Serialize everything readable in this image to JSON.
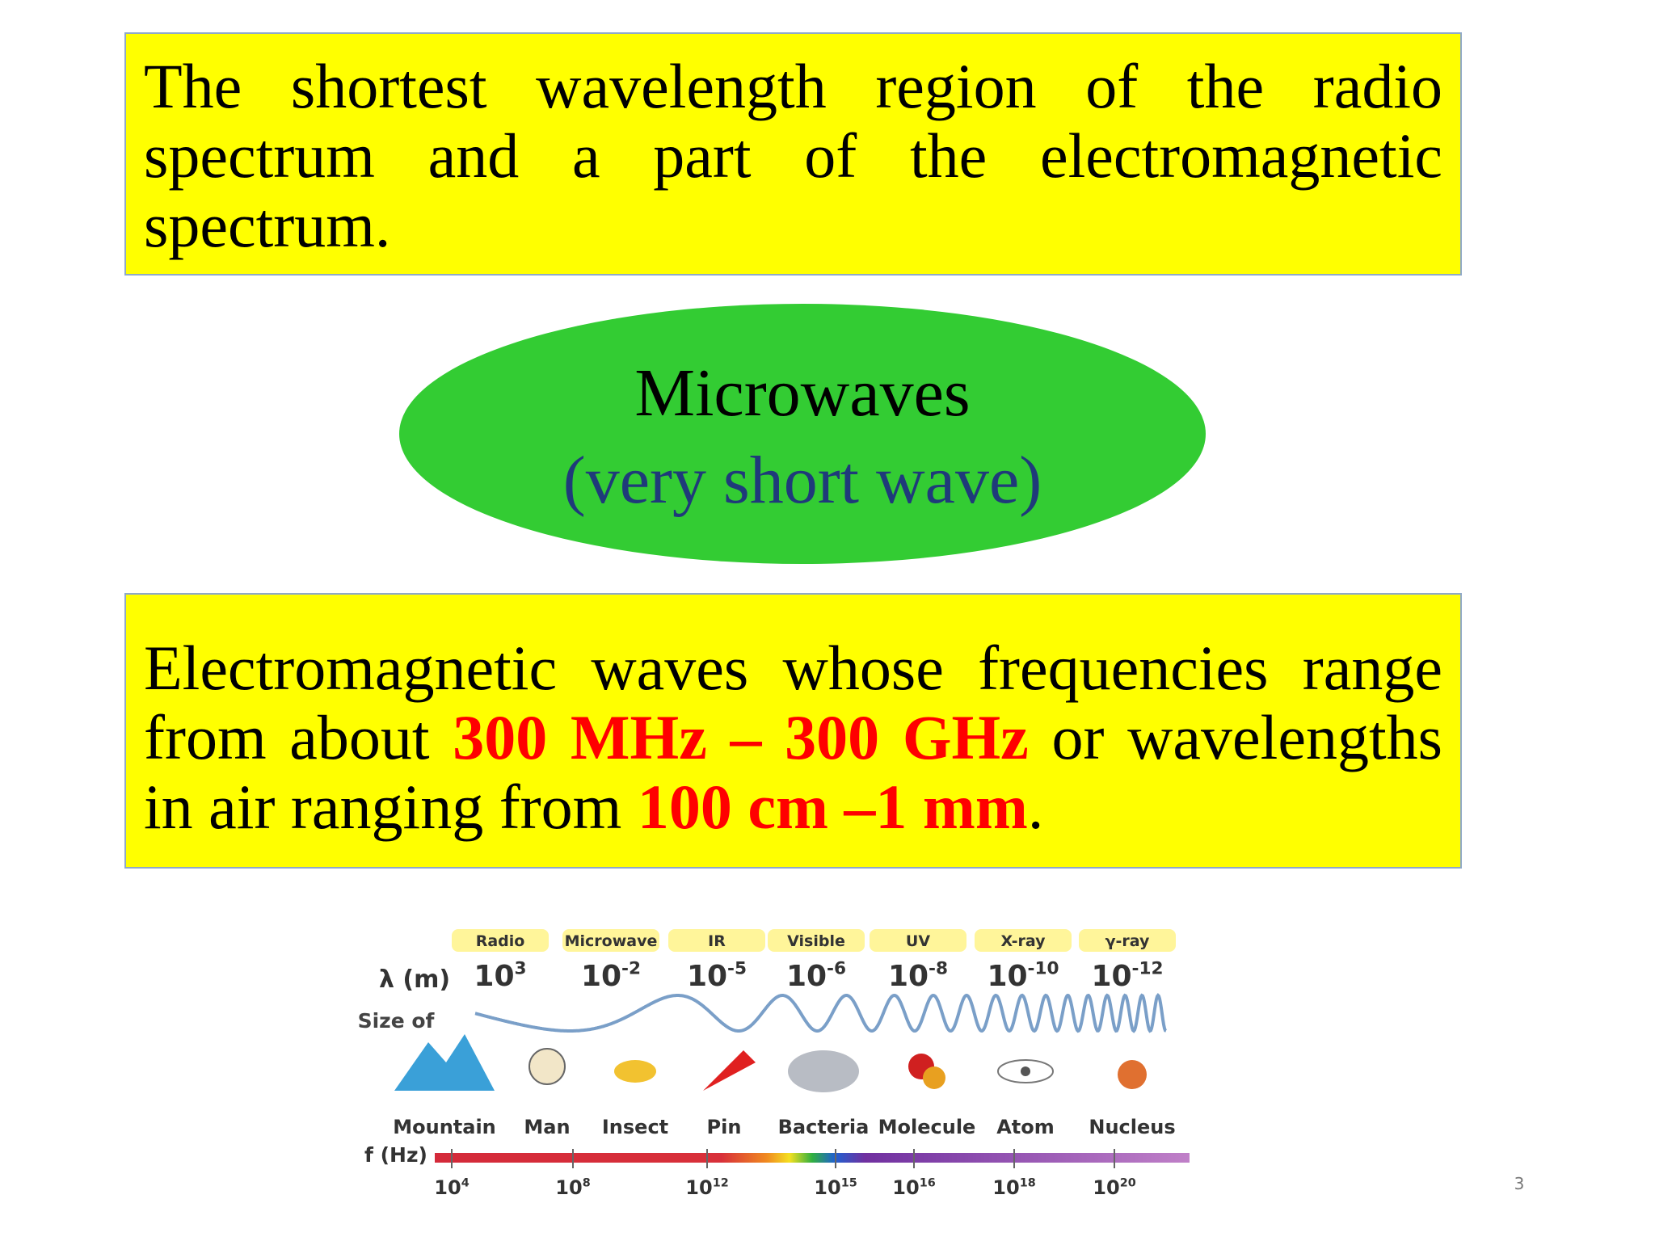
{
  "box1": {
    "text": "The shortest wavelength region of the radio spectrum and a part of the electromagnetic spectrum."
  },
  "ellipse": {
    "title": "Microwaves",
    "subtitle": "(very short wave)"
  },
  "box2": {
    "segments": [
      "Electromagnetic waves whose frequencies range from about ",
      "300 MHz – 300 GHz",
      " or wavelengths in air ranging from ",
      "100 cm –1 mm",
      "."
    ]
  },
  "spectrum": {
    "bands": [
      "Radio",
      "Microwave",
      "IR",
      "Visible",
      "UV",
      "X-ray",
      "γ-ray"
    ],
    "wavelength_label": "λ (m)",
    "wavelengths": [
      {
        "base": "10",
        "exp": "3"
      },
      {
        "base": "10",
        "exp": "-2"
      },
      {
        "base": "10",
        "exp": "-5"
      },
      {
        "base": "10",
        "exp": "-6"
      },
      {
        "base": "10",
        "exp": "-8"
      },
      {
        "base": "10",
        "exp": "-10"
      },
      {
        "base": "10",
        "exp": "-12"
      }
    ],
    "size_label": "Size of",
    "sizes": [
      "Mountain",
      "Man",
      "Insect",
      "Pin",
      "Bacteria",
      "Molecule",
      "Atom",
      "Nucleus"
    ],
    "frequency_label": "f (Hz)",
    "frequencies": [
      {
        "base": "10",
        "exp": "4"
      },
      {
        "base": "10",
        "exp": "8"
      },
      {
        "base": "10",
        "exp": "12"
      },
      {
        "base": "10",
        "exp": "15"
      },
      {
        "base": "10",
        "exp": "16"
      },
      {
        "base": "10",
        "exp": "18"
      },
      {
        "base": "10",
        "exp": "20"
      }
    ]
  },
  "slide_number": "3"
}
